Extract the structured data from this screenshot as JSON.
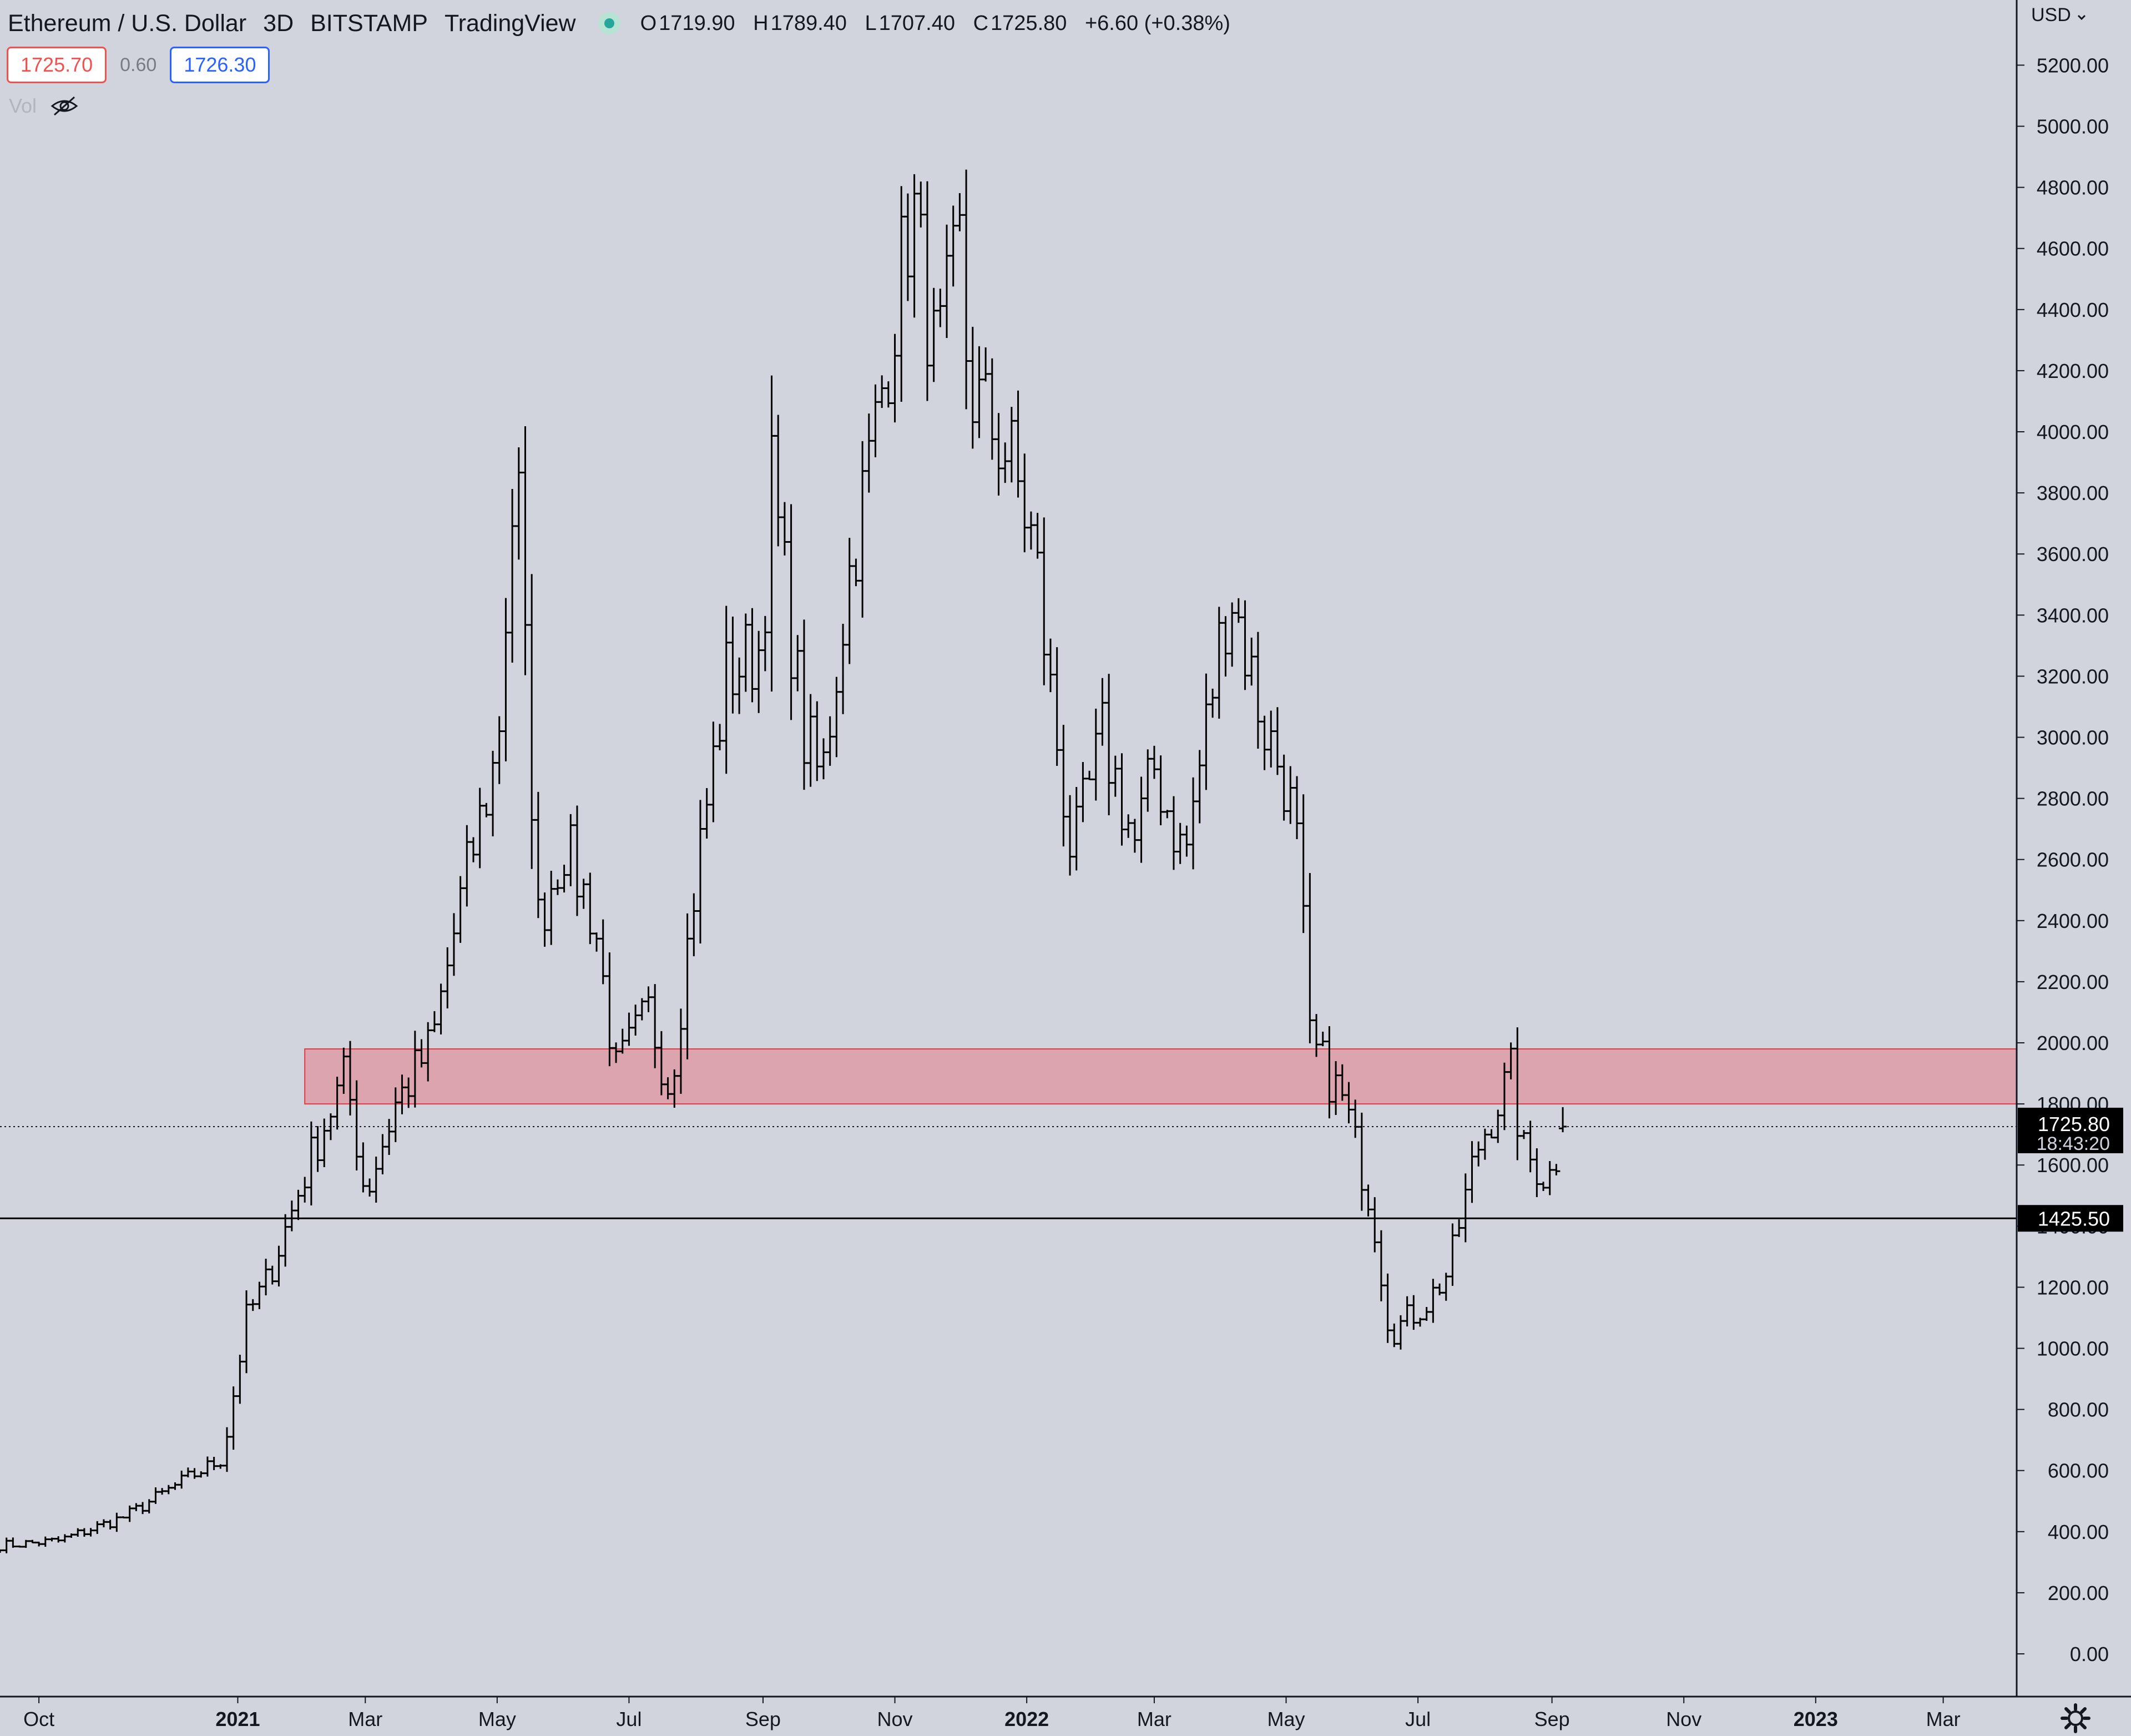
{
  "header": {
    "symbol": "Ethereum / U.S. Dollar",
    "interval": "3D",
    "exchange": "BITSTAMP",
    "source": "TradingView",
    "open_key": "O",
    "open": "1719.90",
    "high_key": "H",
    "high": "1789.40",
    "low_key": "L",
    "low": "1707.40",
    "close_key": "C",
    "close": "1725.80",
    "change": "+6.60 (+0.38%)"
  },
  "quote": {
    "bid": "1725.70",
    "spread": "0.60",
    "ask": "1726.30"
  },
  "vol_label": "Vol",
  "currency_label": "USD",
  "colors": {
    "background": "#d1d4dc",
    "bar": "#000000",
    "zone_fill": "#dca4ae",
    "zone_border": "#e23b46",
    "bid": "#ef5350",
    "ask": "#2962ff",
    "live_dot": "#26a69a"
  },
  "icons": [
    "eye-off-icon",
    "gear-icon",
    "chevron-down-icon",
    "status-dot-icon"
  ],
  "chart_data": {
    "type": "ohlc",
    "title": "Ethereum / U.S. Dollar",
    "ylim": [
      -100,
      5450
    ],
    "y_ticks": [
      "5200.00",
      "5000.00",
      "4800.00",
      "4600.00",
      "4400.00",
      "4200.00",
      "4000.00",
      "3800.00",
      "3600.00",
      "3400.00",
      "3200.00",
      "3000.00",
      "2800.00",
      "2600.00",
      "2400.00",
      "2200.00",
      "2000.00",
      "1800.00",
      "1600.00",
      "1400.00",
      "1200.00",
      "1000.00",
      "800.00",
      "600.00",
      "400.00",
      "200.00",
      "0.00"
    ],
    "x_range": [
      "2020-09-13",
      "2023-03-31"
    ],
    "x_ticks": [
      {
        "date": "2020-10-01",
        "label": "Oct",
        "bold": false
      },
      {
        "date": "2021-01-01",
        "label": "2021",
        "bold": true
      },
      {
        "date": "2021-03-01",
        "label": "Mar",
        "bold": false
      },
      {
        "date": "2021-05-01",
        "label": "May",
        "bold": false
      },
      {
        "date": "2021-07-01",
        "label": "Jul",
        "bold": false
      },
      {
        "date": "2021-09-01",
        "label": "Sep",
        "bold": false
      },
      {
        "date": "2021-11-01",
        "label": "Nov",
        "bold": false
      },
      {
        "date": "2022-01-01",
        "label": "2022",
        "bold": true
      },
      {
        "date": "2022-03-01",
        "label": "Mar",
        "bold": false
      },
      {
        "date": "2022-05-01",
        "label": "May",
        "bold": false
      },
      {
        "date": "2022-07-01",
        "label": "Jul",
        "bold": false
      },
      {
        "date": "2022-09-01",
        "label": "Sep",
        "bold": false
      },
      {
        "date": "2022-11-01",
        "label": "Nov",
        "bold": false
      },
      {
        "date": "2023-01-01",
        "label": "2023",
        "bold": true
      },
      {
        "date": "2023-03-01",
        "label": "Mar",
        "bold": false
      }
    ],
    "bar_interval_days": 3,
    "series": [
      {
        "keypoints": [
          {
            "date": "2020-09-13",
            "close": 355
          },
          {
            "date": "2020-10-10",
            "close": 370
          },
          {
            "date": "2020-11-10",
            "close": 450
          },
          {
            "date": "2020-12-10",
            "close": 580
          },
          {
            "date": "2020-12-25",
            "close": 640
          },
          {
            "date": "2021-01-05",
            "close": 1100
          },
          {
            "date": "2021-01-15",
            "close": 1230
          },
          {
            "date": "2021-02-05",
            "close": 1650
          },
          {
            "date": "2021-02-20",
            "close": 1900
          },
          {
            "date": "2021-03-01",
            "close": 1500
          },
          {
            "date": "2021-03-15",
            "close": 1800
          },
          {
            "date": "2021-04-01",
            "close": 2000
          },
          {
            "date": "2021-04-15",
            "close": 2500
          },
          {
            "date": "2021-05-01",
            "close": 2950
          },
          {
            "date": "2021-05-10",
            "close": 3950
          },
          {
            "date": "2021-05-13",
            "close": 3400
          },
          {
            "date": "2021-05-20",
            "close": 2400
          },
          {
            "date": "2021-06-01",
            "close": 2650
          },
          {
            "date": "2021-06-15",
            "close": 2400
          },
          {
            "date": "2021-06-25",
            "close": 1900
          },
          {
            "date": "2021-07-10",
            "close": 2100
          },
          {
            "date": "2021-07-20",
            "close": 1850
          },
          {
            "date": "2021-08-01",
            "close": 2550
          },
          {
            "date": "2021-08-15",
            "close": 3200
          },
          {
            "date": "2021-09-01",
            "close": 3300
          },
          {
            "date": "2021-09-04",
            "close": 3900
          },
          {
            "date": "2021-09-20",
            "close": 3000
          },
          {
            "date": "2021-09-28",
            "close": 2850
          },
          {
            "date": "2021-10-10",
            "close": 3500
          },
          {
            "date": "2021-10-25",
            "close": 4100
          },
          {
            "date": "2021-11-09",
            "close": 4750
          },
          {
            "date": "2021-11-20",
            "close": 4200
          },
          {
            "date": "2021-12-01",
            "close": 4600
          },
          {
            "date": "2021-12-05",
            "close": 4150
          },
          {
            "date": "2021-12-25",
            "close": 3900
          },
          {
            "date": "2022-01-05",
            "close": 3600
          },
          {
            "date": "2022-01-10",
            "close": 3250
          },
          {
            "date": "2022-01-22",
            "close": 2600
          },
          {
            "date": "2022-02-05",
            "close": 3000
          },
          {
            "date": "2022-02-20",
            "close": 2650
          },
          {
            "date": "2022-03-01",
            "close": 2900
          },
          {
            "date": "2022-03-15",
            "close": 2600
          },
          {
            "date": "2022-03-31",
            "close": 3300
          },
          {
            "date": "2022-04-05",
            "close": 3500
          },
          {
            "date": "2022-04-20",
            "close": 3050
          },
          {
            "date": "2022-05-01",
            "close": 2850
          },
          {
            "date": "2022-05-07",
            "close": 2600
          },
          {
            "date": "2022-05-12",
            "close": 2000
          },
          {
            "date": "2022-05-28",
            "close": 1800
          },
          {
            "date": "2022-06-10",
            "close": 1450
          },
          {
            "date": "2022-06-18",
            "close": 1050
          },
          {
            "date": "2022-07-05",
            "close": 1150
          },
          {
            "date": "2022-07-15",
            "close": 1250
          },
          {
            "date": "2022-07-28",
            "close": 1650
          },
          {
            "date": "2022-08-13",
            "close": 1900
          },
          {
            "date": "2022-08-18",
            "close": 1650
          },
          {
            "date": "2022-08-30",
            "close": 1550
          },
          {
            "date": "2022-09-08",
            "close": 1725.8
          }
        ],
        "last_bar": {
          "open": 1719.9,
          "high": 1789.4,
          "low": 1707.4,
          "close": 1725.8
        }
      }
    ],
    "annotations": {
      "zone": {
        "from_date": "2021-02-01",
        "low": 1800,
        "high": 1980
      },
      "hline": {
        "value": 1425.5,
        "label": "1425.50"
      },
      "last_price": {
        "value": 1725.8,
        "label": "1725.80",
        "countdown": "18:43:20"
      }
    }
  }
}
